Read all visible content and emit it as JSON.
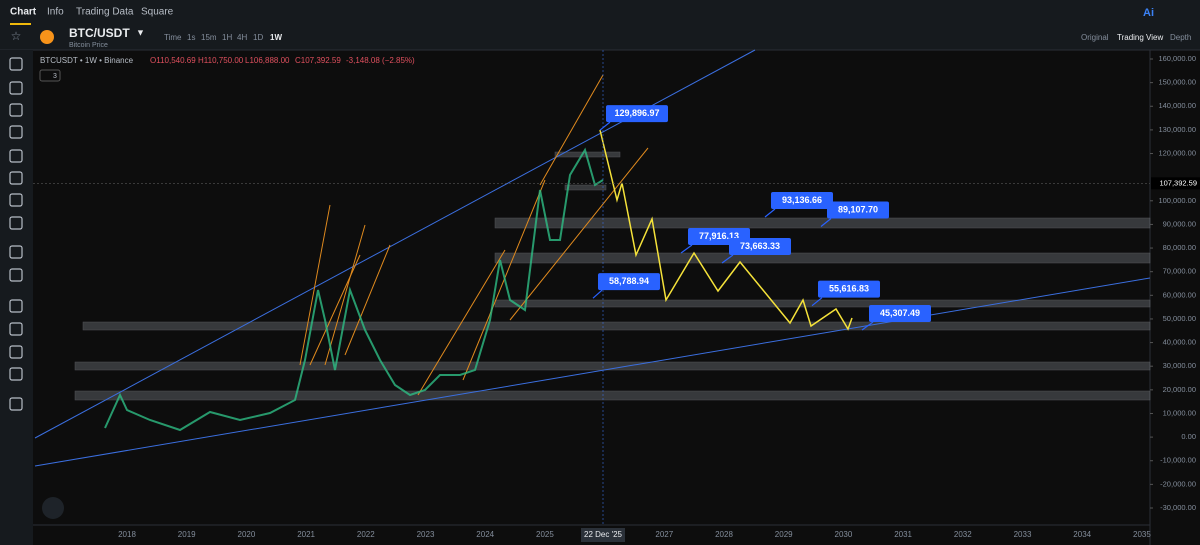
{
  "tabs": [
    "Chart",
    "Info",
    "Trading Data",
    "Square"
  ],
  "symbol": "BTC/USDT",
  "symbol_subtitle": "Bitcoin Price",
  "intervals": [
    "Time",
    "1s",
    "15m",
    "1H",
    "4H",
    "1D",
    "1W"
  ],
  "views": [
    "Original",
    "Trading View",
    "Depth"
  ],
  "ai_label": "Ai",
  "legend": {
    "name": "BTCUSDT • 1W • Binance",
    "open": "O110,540.69",
    "high": "H110,750.00",
    "low": "L106,888.00",
    "close": "C107,392.59",
    "change": "-3,148.08 (−2.85%)",
    "indicators": "3"
  },
  "price_axis": {
    "ylim": [
      160000,
      -30000
    ],
    "ticks": [
      {
        "value": 160000,
        "label": "160,000.00"
      },
      {
        "value": 150000,
        "label": "150,000.00"
      },
      {
        "value": 140000,
        "label": "140,000.00"
      },
      {
        "value": 130000,
        "label": "130,000.00"
      },
      {
        "value": 120000,
        "label": "120,000.00"
      },
      {
        "value": 100000,
        "label": "100,000.00"
      },
      {
        "value": 90000,
        "label": "90,000.00"
      },
      {
        "value": 80000,
        "label": "80,000.00"
      },
      {
        "value": 70000,
        "label": "70,000.00"
      },
      {
        "value": 60000,
        "label": "60,000.00"
      },
      {
        "value": 50000,
        "label": "50,000.00"
      },
      {
        "value": 40000,
        "label": "40,000.00"
      },
      {
        "value": 30000,
        "label": "30,000.00"
      },
      {
        "value": 20000,
        "label": "20,000.00"
      },
      {
        "value": 10000,
        "label": "10,000.00"
      },
      {
        "value": 0,
        "label": "0.00"
      },
      {
        "value": -10000,
        "label": "-10,000.00"
      },
      {
        "value": -20000,
        "label": "-20,000.00"
      },
      {
        "value": -30000,
        "label": "-30,000.00"
      }
    ],
    "current": {
      "value": 107392.59,
      "label": "107,392.59"
    }
  },
  "time_axis": {
    "years": [
      2018,
      2019,
      2020,
      2021,
      2022,
      2023,
      2024,
      2025,
      2027,
      2028,
      2029,
      2030,
      2031,
      2032,
      2033,
      2034,
      2035
    ],
    "crosshair": "22 Dec '25"
  },
  "annotations": [
    {
      "value": 129896.97,
      "label": "129,896.97"
    },
    {
      "value": 93136.66,
      "label": "93,136.66"
    },
    {
      "value": 89107.7,
      "label": "89,107.70"
    },
    {
      "value": 77916.13,
      "label": "77,916.13"
    },
    {
      "value": 73663.33,
      "label": "73,663.33"
    },
    {
      "value": 58788.94,
      "label": "58,788.94"
    },
    {
      "value": 55616.83,
      "label": "55,616.83"
    },
    {
      "value": 45307.49,
      "label": "45,307.49"
    }
  ]
}
